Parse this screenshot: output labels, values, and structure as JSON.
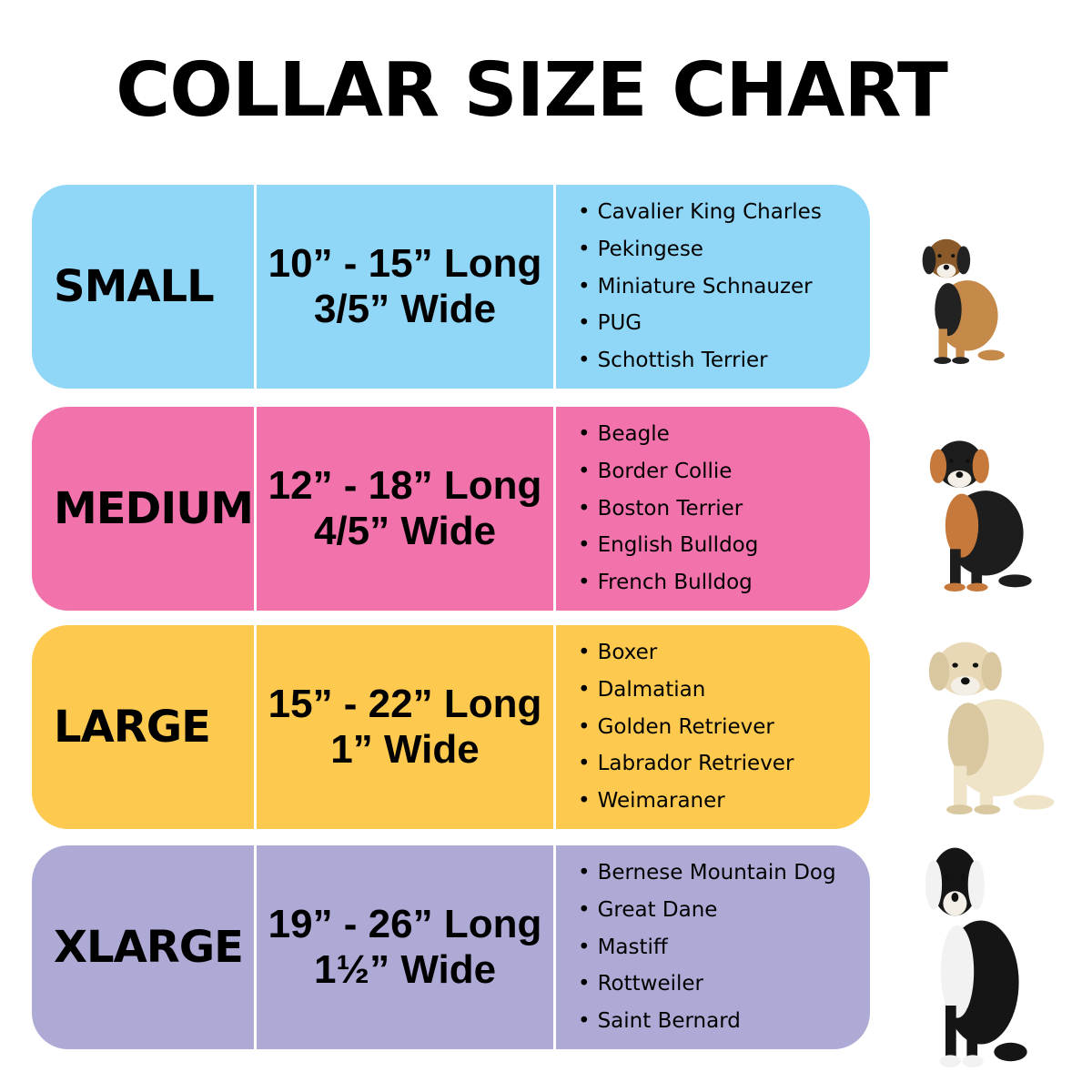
{
  "title": "COLLAR SIZE CHART",
  "rows": [
    {
      "size": "SMALL",
      "length": "10” - 15” Long",
      "width": "3/5” Wide",
      "color": "#8fd6f7",
      "dog_icon": "beagle-dog-icon",
      "breeds": [
        "Cavalier King Charles",
        "Pekingese",
        "Miniature Schnauzer",
        "PUG",
        "Schottish Terrier"
      ]
    },
    {
      "size": "MEDIUM",
      "length": "12” - 18” Long",
      "width": "4/5” Wide",
      "color": "#f272ac",
      "dog_icon": "australian-shepherd-dog-icon",
      "breeds": [
        "Beagle",
        "Border Collie",
        "Boston Terrier",
        "English Bulldog",
        "French Bulldog"
      ]
    },
    {
      "size": "LARGE",
      "length": "15” - 22” Long",
      "width": "1” Wide",
      "color": "#fdc94f",
      "dog_icon": "labrador-dog-icon",
      "breeds": [
        "Boxer",
        "Dalmatian",
        "Golden Retriever",
        "Labrador Retriever",
        "Weimaraner"
      ]
    },
    {
      "size": "XLARGE",
      "length": "19” - 26” Long",
      "width": "1½” Wide",
      "color": "#aeaad6",
      "dog_icon": "great-dane-dog-icon",
      "breeds": [
        "Bernese Mountain Dog",
        "Great Dane",
        "Mastiff",
        "Rottweiler",
        "Saint Bernard"
      ]
    }
  ]
}
